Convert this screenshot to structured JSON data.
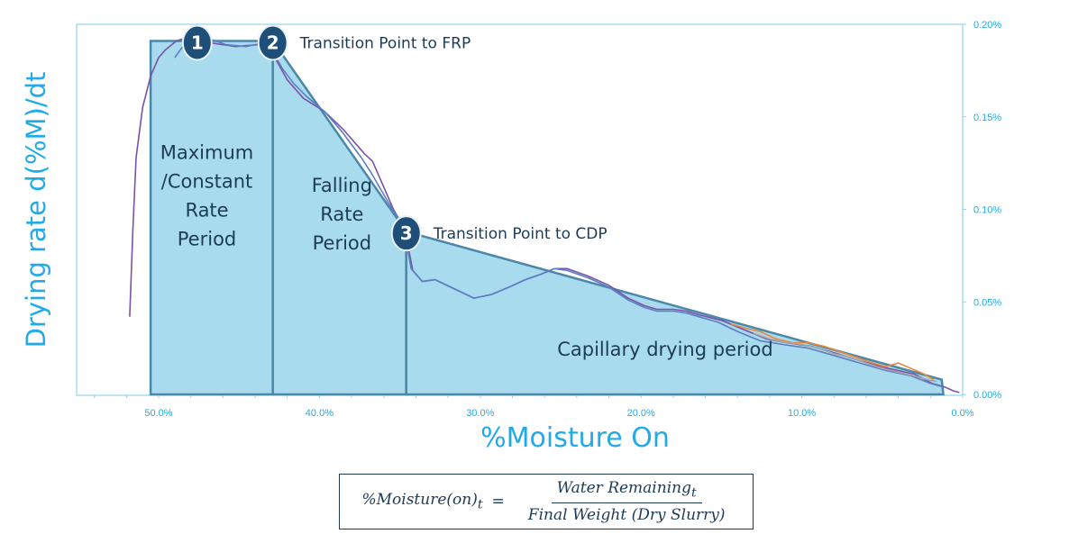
{
  "chart_data": {
    "type": "area",
    "xlabel": "%Moisture On",
    "ylabel": "Drying rate  d(%M)/dt",
    "xlim": [
      55,
      0
    ],
    "ylim": [
      0,
      0.2
    ],
    "x_ticks": [
      "50.0%",
      "40.0%",
      "30.0%",
      "20.0%",
      "10.0%",
      "0.0%"
    ],
    "x_tick_values": [
      50,
      40,
      30,
      20,
      10,
      0
    ],
    "y_ticks": [
      "0.00%",
      "0.05%",
      "0.10%",
      "0.15%",
      "0.20%"
    ],
    "y_tick_values": [
      0,
      0.05,
      0.1,
      0.15,
      0.2
    ],
    "y_axis_side": "right",
    "regions": [
      {
        "label_lines": [
          "Maximum",
          "/Constant",
          "Rate",
          "Period"
        ],
        "points": [
          [
            50.5,
            0
          ],
          [
            50.5,
            0.191
          ],
          [
            42.9,
            0.191
          ],
          [
            42.9,
            0
          ]
        ]
      },
      {
        "label_lines": [
          "Falling",
          "Rate",
          "Period"
        ],
        "points": [
          [
            42.9,
            0
          ],
          [
            42.9,
            0.191
          ],
          [
            34.6,
            0.088
          ],
          [
            34.6,
            0
          ]
        ]
      },
      {
        "label_lines": [
          "Capillary drying period"
        ],
        "points": [
          [
            34.6,
            0
          ],
          [
            34.6,
            0.088
          ],
          [
            1.3,
            0.008
          ],
          [
            1.2,
            0
          ]
        ]
      }
    ],
    "series": [
      {
        "color": "#7b52a8",
        "x": [
          51.8,
          51.6,
          51.4,
          51.0,
          50.5,
          50.0,
          49.6,
          48.9,
          48.2,
          47.6,
          46.8,
          45.2,
          43.8,
          42.9,
          42.0,
          41.0,
          39.7,
          38.5,
          37.2,
          36.7,
          36.0,
          35.4,
          35.0,
          34.6,
          34.2,
          33.6,
          32.8,
          31.6,
          30.4,
          29.3,
          28.2,
          27.2,
          26.2,
          25.4,
          24.6,
          23.3,
          22.0,
          20.8,
          19.8,
          19.0,
          18.0,
          17.2,
          16.4,
          15.0,
          13.6,
          12.2,
          11.0,
          9.4,
          7.8,
          6.3,
          4.6,
          3.0,
          1.9,
          1.1,
          0.6,
          0.2
        ],
        "y": [
          0.042,
          0.09,
          0.128,
          0.155,
          0.172,
          0.182,
          0.186,
          0.191,
          0.193,
          0.192,
          0.19,
          0.188,
          0.189,
          0.184,
          0.17,
          0.16,
          0.153,
          0.143,
          0.13,
          0.126,
          0.112,
          0.1,
          0.094,
          0.085,
          0.067,
          0.061,
          0.062,
          0.057,
          0.052,
          0.054,
          0.058,
          0.062,
          0.065,
          0.068,
          0.068,
          0.064,
          0.059,
          0.052,
          0.048,
          0.046,
          0.046,
          0.045,
          0.043,
          0.04,
          0.035,
          0.03,
          0.028,
          0.026,
          0.022,
          0.018,
          0.014,
          0.011,
          0.006,
          0.004,
          0.002,
          0.001
        ]
      },
      {
        "color": "#5b7fc0",
        "x": [
          49.0,
          48.5,
          47.5,
          46.8,
          45.8,
          44.6,
          43.4,
          42.9,
          42.3,
          41.6,
          40.8,
          39.7,
          38.6,
          37.4,
          36.8,
          36.0,
          35.4,
          34.9,
          34.6,
          34.3,
          33.6,
          32.8,
          31.6,
          30.4,
          29.3,
          28.2,
          27.2,
          26.2,
          25.4,
          24.6,
          23.3,
          22.0,
          20.8,
          19.8,
          19.0,
          18.0,
          17.2,
          16.4,
          15.2,
          14.0,
          12.6,
          11.2,
          9.6,
          8.0,
          6.4,
          4.8,
          3.2,
          2.0,
          1.2
        ],
        "y": [
          0.182,
          0.188,
          0.193,
          0.192,
          0.189,
          0.188,
          0.19,
          0.185,
          0.176,
          0.168,
          0.161,
          0.153,
          0.142,
          0.128,
          0.12,
          0.108,
          0.099,
          0.093,
          0.083,
          0.068,
          0.061,
          0.062,
          0.057,
          0.052,
          0.054,
          0.058,
          0.062,
          0.065,
          0.068,
          0.067,
          0.063,
          0.058,
          0.051,
          0.047,
          0.045,
          0.045,
          0.044,
          0.042,
          0.039,
          0.034,
          0.029,
          0.027,
          0.025,
          0.021,
          0.017,
          0.013,
          0.01,
          0.006,
          0.004
        ]
      },
      {
        "color": "#e8883a",
        "x": [
          14.4,
          13.6,
          12.6,
          11.6,
          10.6,
          9.6,
          8.6,
          7.6,
          6.6,
          5.6,
          4.8,
          4.0,
          3.2,
          2.4,
          1.8
        ],
        "y": [
          0.038,
          0.036,
          0.034,
          0.03,
          0.028,
          0.028,
          0.026,
          0.023,
          0.02,
          0.017,
          0.015,
          0.017,
          0.014,
          0.011,
          0.008
        ]
      },
      {
        "color": "#a6a6a6",
        "x": [
          13.0,
          12.0,
          11.0,
          10.0,
          9.0,
          8.0,
          7.0,
          6.0,
          5.0,
          4.0,
          3.0,
          2.2,
          1.6
        ],
        "y": [
          0.033,
          0.03,
          0.028,
          0.027,
          0.025,
          0.022,
          0.02,
          0.017,
          0.014,
          0.012,
          0.01,
          0.008,
          0.007
        ]
      }
    ],
    "callouts": [
      {
        "number": "1",
        "x": 47.6,
        "y": 0.191,
        "text": ""
      },
      {
        "number": "2",
        "x": 42.9,
        "y": 0.191,
        "text": "Transition Point to FRP"
      },
      {
        "number": "3",
        "x": 34.6,
        "y": 0.088,
        "text": "Transition Point to CDP"
      }
    ],
    "grid": false,
    "colors": {
      "region_fill": "#a9dbef",
      "region_stroke": "#4a87a8",
      "plot_border": "#7fc9ea",
      "axis_title": "#21aae8",
      "tick_label": "#21aae8",
      "marker_fill": "#1f4e79",
      "marker_stroke": "#e8f2f8",
      "label_text": "#1d3b57"
    }
  },
  "formula": {
    "lhs": "%Moisture(on)",
    "lhs_sub": "t",
    "numerator": "Water Remaining",
    "numerator_sub": "t",
    "denominator": "Final Weight (Dry Slurry)"
  }
}
